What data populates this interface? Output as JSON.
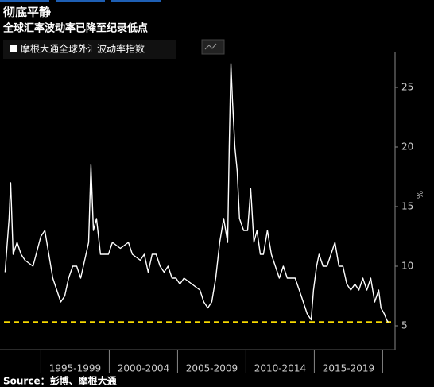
{
  "chart_data": {
    "type": "line",
    "title": "彻底平静",
    "subtitle": "全球汇率波动率已降至纪录低点",
    "source": "Source：彭博、摩根大通",
    "y_label": "%",
    "series": [
      {
        "name": "摩根大通全球外汇波动率指数",
        "color": "#ffffff",
        "x": [
          1992.38,
          1992.67,
          1992.79,
          1992.97,
          1993.26,
          1993.55,
          1993.84,
          1994.42,
          1995.0,
          1995.29,
          1995.58,
          1995.87,
          1996.16,
          1996.45,
          1996.74,
          1997.03,
          1997.33,
          1997.62,
          1997.91,
          1998.2,
          1998.49,
          1998.66,
          1998.84,
          1999.07,
          1999.36,
          1999.94,
          2000.23,
          2000.81,
          2001.4,
          2001.69,
          2002.27,
          2002.56,
          2002.85,
          2003.14,
          2003.43,
          2003.72,
          2004.01,
          2004.3,
          2004.59,
          2004.88,
          2005.17,
          2005.47,
          2006.05,
          2006.63,
          2006.92,
          2007.21,
          2007.5,
          2007.79,
          2008.08,
          2008.37,
          2008.66,
          2008.78,
          2008.9,
          2009.01,
          2009.19,
          2009.36,
          2009.53,
          2009.83,
          2010.12,
          2010.35,
          2010.58,
          2010.81,
          2011.05,
          2011.28,
          2011.57,
          2011.86,
          2012.15,
          2012.44,
          2012.73,
          2013.02,
          2013.31,
          2013.6,
          2013.9,
          2014.19,
          2014.48,
          2014.77,
          2014.94,
          2015.17,
          2015.35,
          2015.64,
          2015.93,
          2016.22,
          2016.51,
          2016.8,
          2017.09,
          2017.38,
          2017.67,
          2017.97,
          2018.26,
          2018.55,
          2018.84,
          2019.13,
          2019.42,
          2019.71,
          2019.88,
          2020.12,
          2020.29,
          2020.41
        ],
        "values": [
          9.5,
          14,
          17,
          11,
          12,
          11,
          10.5,
          10,
          12.5,
          13,
          11,
          9,
          8,
          7,
          7.5,
          9,
          10,
          10,
          9,
          10.5,
          12,
          18.5,
          13,
          14,
          11,
          11,
          12,
          11.5,
          12,
          11,
          10.5,
          11,
          9.5,
          11,
          11,
          10,
          9.5,
          10,
          9,
          9,
          8.5,
          9,
          8.5,
          8,
          7,
          6.5,
          7,
          9,
          12,
          14,
          12,
          20,
          27,
          24,
          20,
          18,
          14,
          13,
          13,
          16.5,
          12,
          13,
          11,
          11,
          13,
          11,
          10,
          9,
          10,
          9,
          9,
          9,
          8,
          7,
          6,
          5.5,
          8,
          10,
          11,
          10,
          10,
          11,
          12,
          10,
          10,
          8.5,
          8,
          8.5,
          8,
          9,
          8,
          9,
          7,
          8,
          6.5,
          6,
          5.5,
          5.3
        ]
      }
    ],
    "reference_line": {
      "value": 5.3,
      "color": "#f5d800"
    },
    "xlim": [
      1992.3,
      2020.5
    ],
    "xticks": [
      1995,
      2000,
      2005,
      2010,
      2015,
      2020
    ],
    "period_labels": [
      "1995-1999",
      "2000-2004",
      "2005-2009",
      "2010-2014",
      "2015-2019"
    ],
    "ylim": [
      3,
      28
    ],
    "yticks": [
      5,
      10,
      15,
      20,
      25
    ]
  }
}
